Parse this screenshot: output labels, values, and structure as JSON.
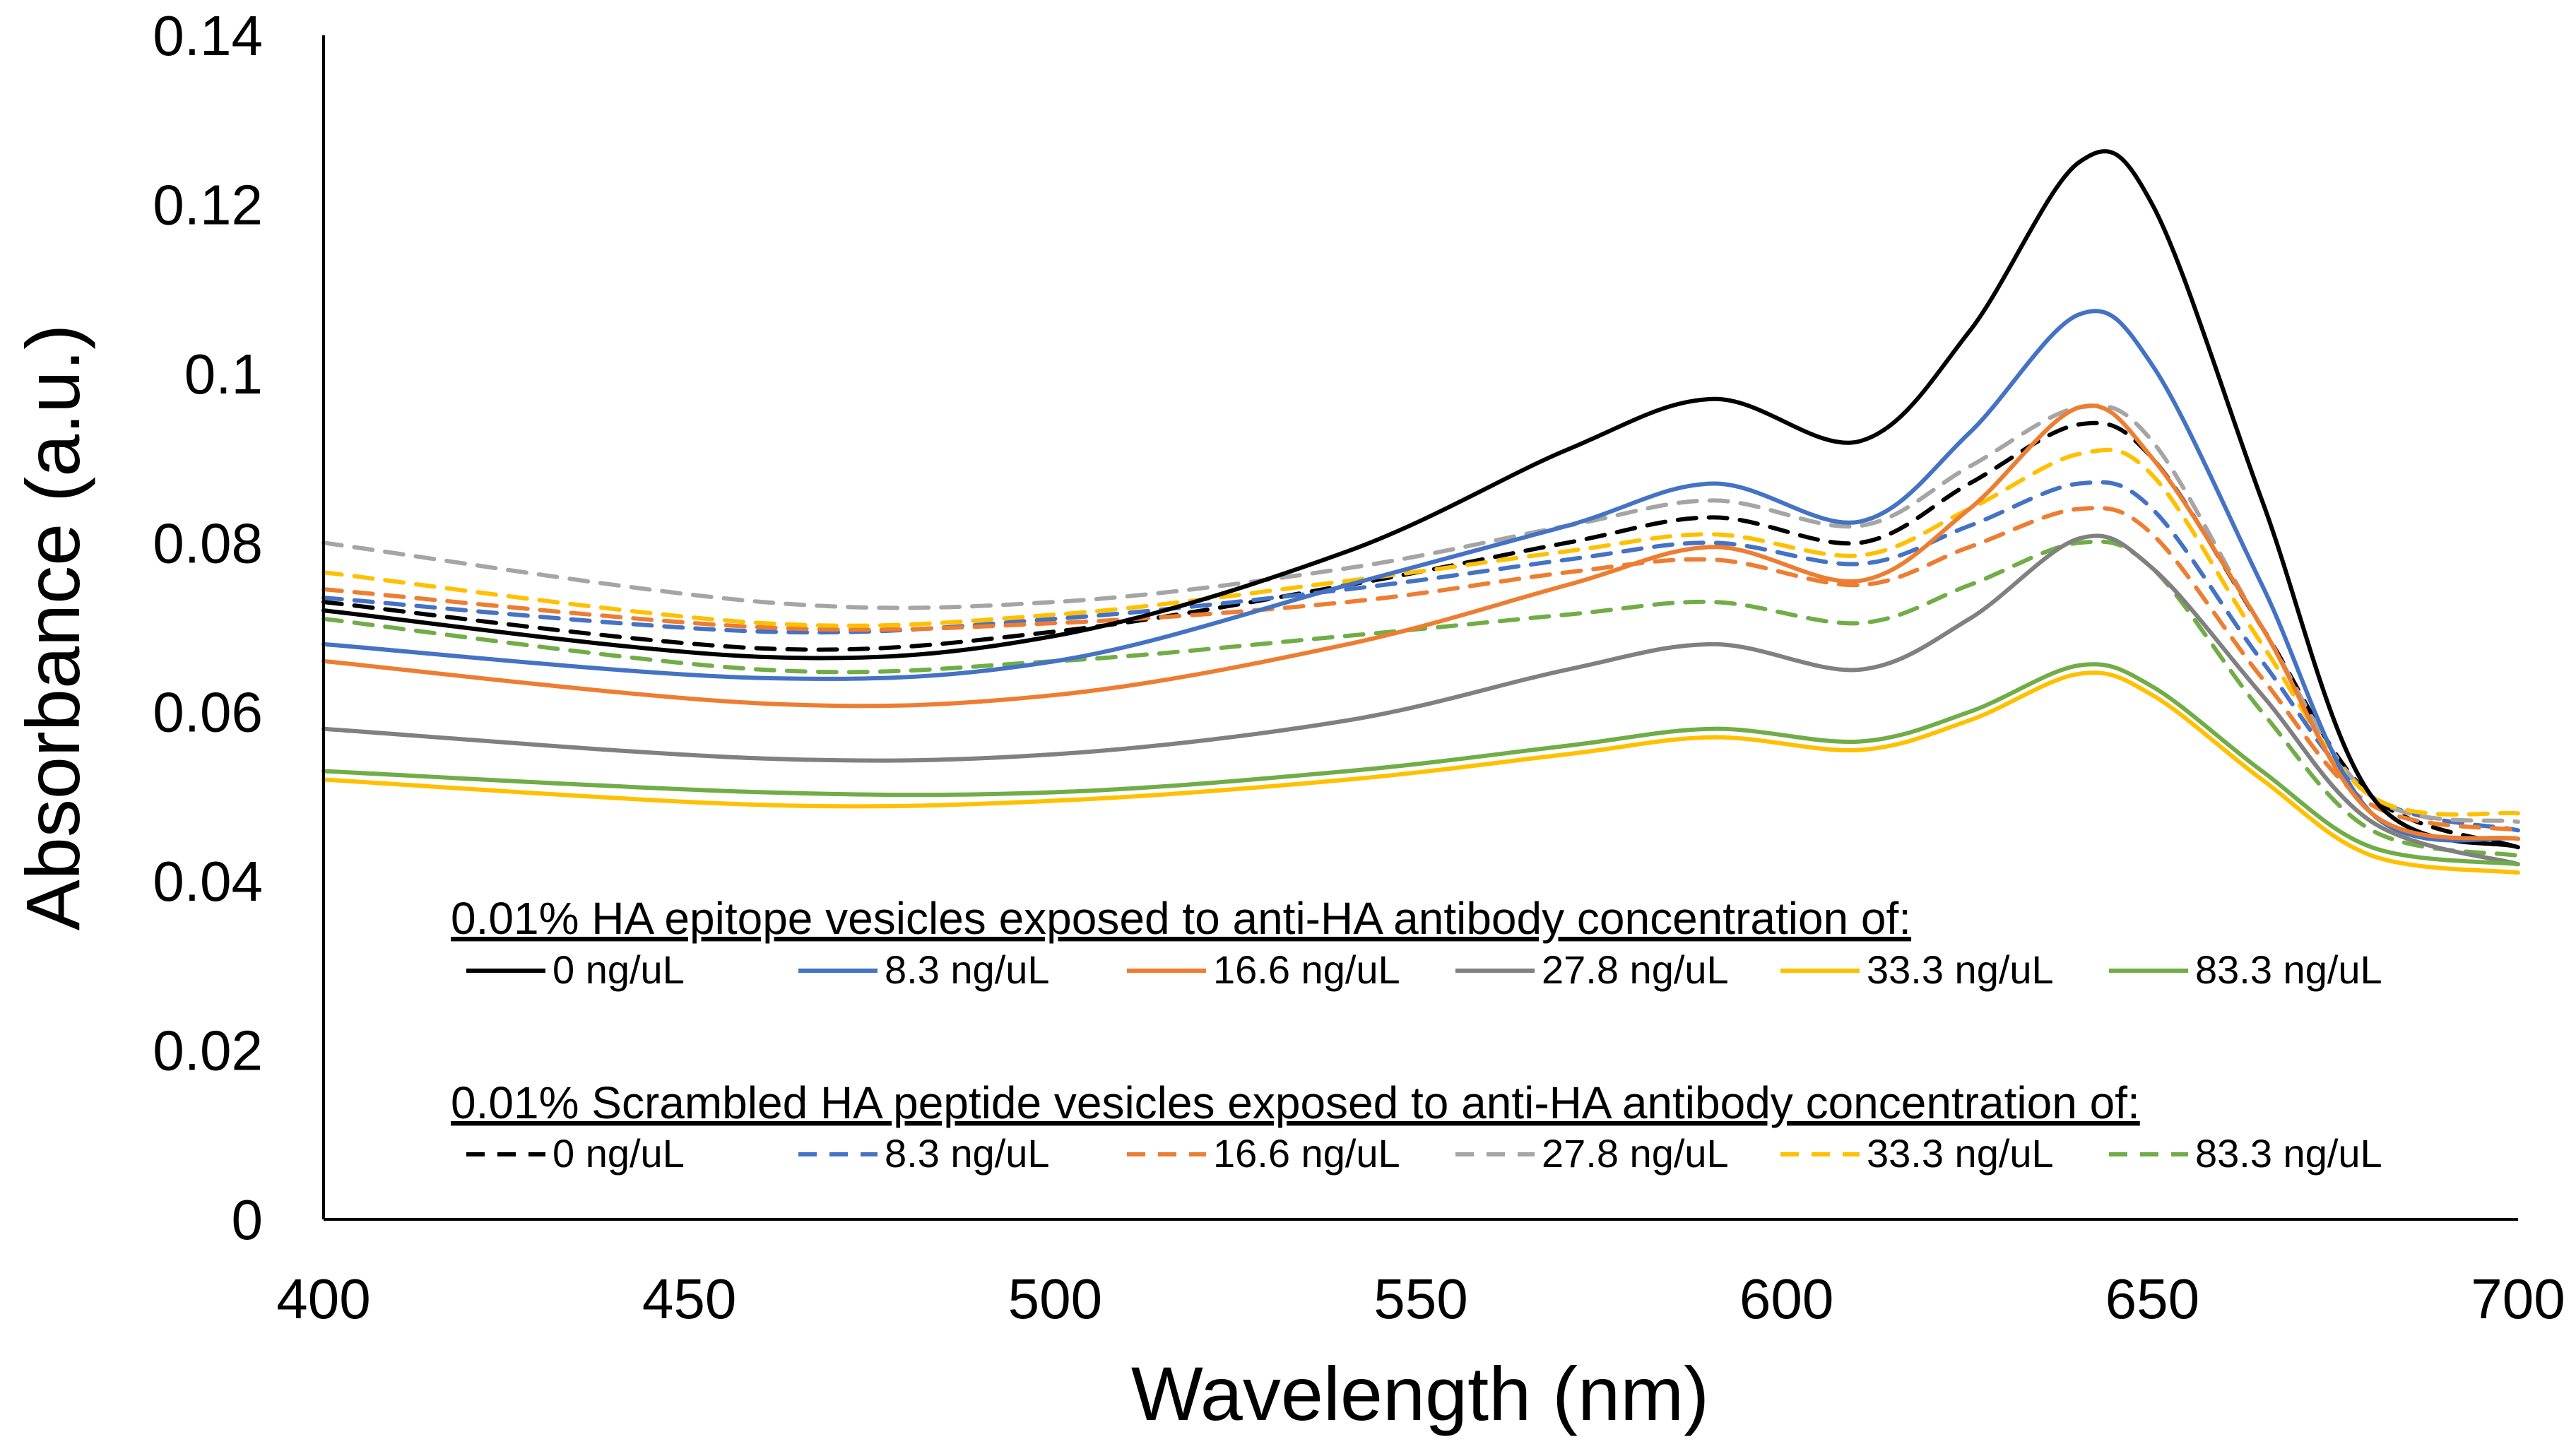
{
  "chart_data": {
    "type": "line",
    "title": "",
    "xlabel": "Wavelength (nm)",
    "ylabel": "Absorbance (a.u.)",
    "xlim": [
      400,
      700
    ],
    "ylim": [
      0,
      0.14
    ],
    "xticks": [
      "400",
      "450",
      "500",
      "550",
      "600",
      "650",
      "700"
    ],
    "yticks": [
      "0",
      "0.02",
      "0.04",
      "0.06",
      "0.08",
      "0.1",
      "0.12",
      "0.14"
    ],
    "grid": false,
    "legend_position": "bottom-inside",
    "x": [
      400,
      460,
      500,
      540,
      570,
      590,
      610,
      625,
      640,
      650,
      665,
      680,
      700
    ],
    "groups": [
      {
        "title": "0.01% HA epitope vesicles exposed to anti-HA antibody concentration of:",
        "style": "solid"
      },
      {
        "title": "0.01% Scrambled HA peptide vesicles exposed to anti-HA antibody concentration of:",
        "style": "dashed"
      }
    ],
    "series": [
      {
        "name": "0 ng/uL",
        "group": 0,
        "color": "#000000",
        "values": [
          0.072,
          0.0665,
          0.069,
          0.079,
          0.091,
          0.097,
          0.092,
          0.105,
          0.125,
          0.12,
          0.085,
          0.05,
          0.044
        ]
      },
      {
        "name": "8.3 ng/uL",
        "group": 0,
        "color": "#4472c4",
        "values": [
          0.068,
          0.064,
          0.066,
          0.075,
          0.082,
          0.087,
          0.0825,
          0.093,
          0.107,
          0.101,
          0.075,
          0.048,
          0.045
        ]
      },
      {
        "name": "16.6 ng/uL",
        "group": 0,
        "color": "#ed7d31",
        "values": [
          0.066,
          0.061,
          0.062,
          0.068,
          0.075,
          0.0795,
          0.0755,
          0.084,
          0.096,
          0.09,
          0.07,
          0.048,
          0.045
        ]
      },
      {
        "name": "27.8 ng/uL",
        "group": 0,
        "color": "#808080",
        "values": [
          0.058,
          0.0545,
          0.055,
          0.059,
          0.065,
          0.068,
          0.065,
          0.071,
          0.0805,
          0.077,
          0.062,
          0.047,
          0.042
        ]
      },
      {
        "name": "33.3 ng/uL",
        "group": 0,
        "color": "#ffc000",
        "values": [
          0.052,
          0.049,
          0.0495,
          0.052,
          0.055,
          0.057,
          0.0555,
          0.059,
          0.0645,
          0.062,
          0.052,
          0.043,
          0.041
        ]
      },
      {
        "name": "83.3 ng/uL",
        "group": 0,
        "color": "#70ad47",
        "values": [
          0.053,
          0.0505,
          0.0505,
          0.053,
          0.056,
          0.058,
          0.0565,
          0.06,
          0.0655,
          0.063,
          0.053,
          0.044,
          0.042
        ]
      },
      {
        "name": "0 ng/uL",
        "group": 1,
        "color": "#000000",
        "values": [
          0.073,
          0.0675,
          0.0695,
          0.075,
          0.08,
          0.083,
          0.08,
          0.087,
          0.094,
          0.09,
          0.07,
          0.05,
          0.044
        ]
      },
      {
        "name": "8.3 ng/uL",
        "group": 1,
        "color": "#4472c4",
        "values": [
          0.0735,
          0.0695,
          0.071,
          0.0745,
          0.078,
          0.08,
          0.0775,
          0.082,
          0.087,
          0.084,
          0.066,
          0.05,
          0.046
        ]
      },
      {
        "name": "16.6 ng/uL",
        "group": 1,
        "color": "#ed7d31",
        "values": [
          0.0745,
          0.07,
          0.0705,
          0.073,
          0.0765,
          0.078,
          0.075,
          0.0795,
          0.084,
          0.081,
          0.064,
          0.049,
          0.046
        ]
      },
      {
        "name": "27.8 ng/uL",
        "group": 1,
        "color": "#a5a5a5",
        "values": [
          0.08,
          0.073,
          0.073,
          0.077,
          0.082,
          0.085,
          0.082,
          0.089,
          0.096,
          0.092,
          0.07,
          0.05,
          0.047
        ]
      },
      {
        "name": "33.3 ng/uL",
        "group": 1,
        "color": "#ffc000",
        "values": [
          0.0765,
          0.0705,
          0.0715,
          0.0755,
          0.079,
          0.081,
          0.0785,
          0.084,
          0.0905,
          0.088,
          0.068,
          0.05,
          0.048
        ]
      },
      {
        "name": "83.3 ng/uL",
        "group": 1,
        "color": "#70ad47",
        "values": [
          0.071,
          0.065,
          0.066,
          0.069,
          0.0715,
          0.073,
          0.0705,
          0.075,
          0.08,
          0.077,
          0.06,
          0.046,
          0.043
        ]
      }
    ]
  }
}
